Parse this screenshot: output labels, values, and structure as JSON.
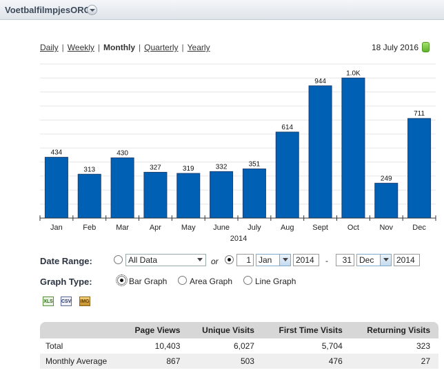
{
  "header": {
    "site_name": "VoetbalfilmpjesORG"
  },
  "period_nav": {
    "items": [
      {
        "label": "Daily",
        "active": false
      },
      {
        "label": "Weekly",
        "active": false
      },
      {
        "label": "Monthly",
        "active": true
      },
      {
        "label": "Quarterly",
        "active": false
      },
      {
        "label": "Yearly",
        "active": false
      }
    ],
    "separator": "|"
  },
  "date_display": "18 July 2016",
  "chart_data": {
    "type": "bar",
    "categories": [
      "Jan",
      "Feb",
      "Mar",
      "Apr",
      "May",
      "June",
      "July",
      "Aug",
      "Sept",
      "Oct",
      "Nov",
      "Dec"
    ],
    "values": [
      434,
      313,
      430,
      327,
      319,
      332,
      351,
      614,
      944,
      1000,
      249,
      711
    ],
    "data_labels": [
      "434",
      "313",
      "430",
      "327",
      "319",
      "332",
      "351",
      "614",
      "944",
      "1.0K",
      "249",
      "711"
    ],
    "xlabel": "2014",
    "ylim": [
      0,
      1100
    ],
    "grid": true,
    "color": "#0060b4"
  },
  "date_range": {
    "label": "Date Range:",
    "all_data_label": "All Data",
    "or_text": "or",
    "from_day": "1",
    "from_month": "Jan",
    "from_year": "2014",
    "dash": "-",
    "to_day": "31",
    "to_month": "Dec",
    "to_year": "2014"
  },
  "graph_type": {
    "label": "Graph Type:",
    "options": [
      "Bar Graph",
      "Area Graph",
      "Line Graph"
    ],
    "selected": "Bar Graph"
  },
  "export_icons": [
    "excel-export-icon",
    "csv-export-icon",
    "image-export-icon"
  ],
  "export_text": {
    "xls": "XLS",
    "csv": "CSV",
    "img": "IMG"
  },
  "stats_table": {
    "headers": [
      "",
      "Page Views",
      "Unique Visits",
      "First Time Visits",
      "Returning Visits"
    ],
    "rows": [
      [
        "Total",
        "10,403",
        "6,027",
        "5,704",
        "323"
      ],
      [
        "Monthly Average",
        "867",
        "503",
        "476",
        "27"
      ]
    ]
  }
}
